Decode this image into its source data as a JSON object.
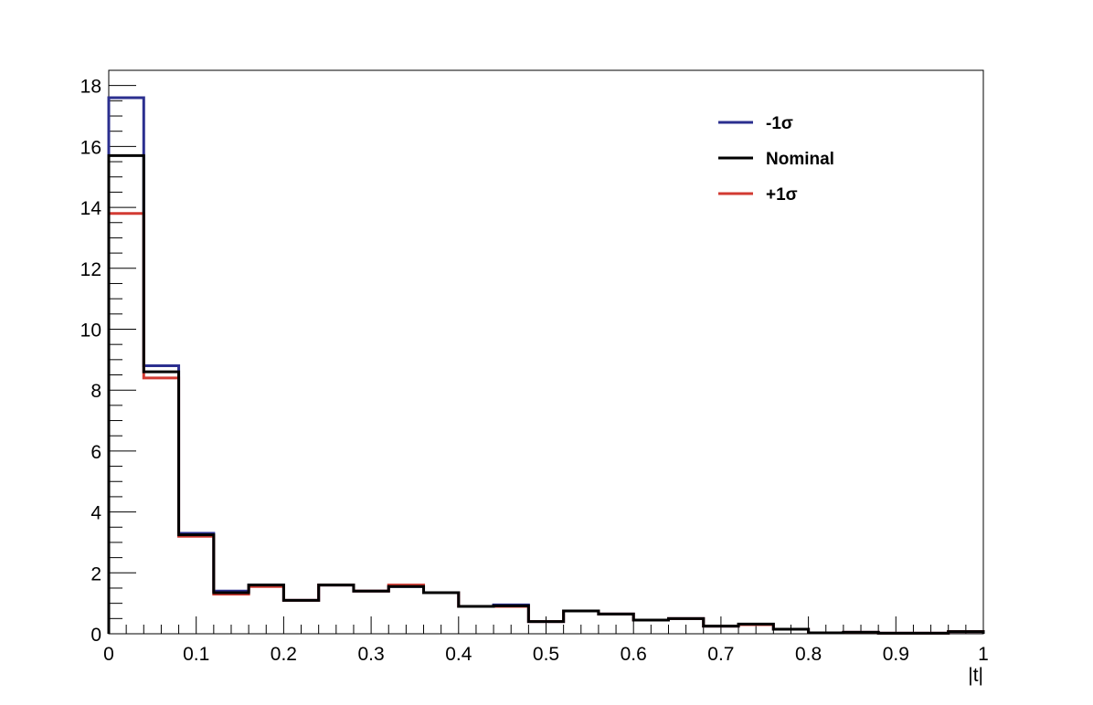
{
  "chart_data": {
    "type": "histogram-step",
    "xlabel": "|t|",
    "ylabel": "",
    "xlim": [
      0,
      1
    ],
    "ylim": [
      0,
      18.5
    ],
    "x_ticks": [
      0,
      0.1,
      0.2,
      0.3,
      0.4,
      0.5,
      0.6,
      0.7,
      0.8,
      0.9,
      1
    ],
    "x_tick_labels": [
      "0",
      "0.1",
      "0.2",
      "0.3",
      "0.4",
      "0.5",
      "0.6",
      "0.7",
      "0.8",
      "0.9",
      "1"
    ],
    "y_ticks": [
      0,
      2,
      4,
      6,
      8,
      10,
      12,
      14,
      16,
      18
    ],
    "y_tick_labels": [
      "0",
      "2",
      "4",
      "6",
      "8",
      "10",
      "12",
      "14",
      "16",
      "18"
    ],
    "bin_edges": [
      0,
      0.04,
      0.08,
      0.12,
      0.16,
      0.2,
      0.24,
      0.28,
      0.32,
      0.36,
      0.4,
      0.44,
      0.48,
      0.52,
      0.56,
      0.6,
      0.64,
      0.68,
      0.72,
      0.76,
      0.8,
      0.84,
      0.88,
      0.92,
      0.96,
      1.0
    ],
    "legend_position": "top-right",
    "series": [
      {
        "name": "-1σ",
        "color": "#2b2f8f",
        "values": [
          17.6,
          8.8,
          3.3,
          1.4,
          1.6,
          1.1,
          1.6,
          1.4,
          1.55,
          1.35,
          0.9,
          0.95,
          0.4,
          0.75,
          0.65,
          0.45,
          0.5,
          0.25,
          0.3,
          0.15,
          0.03,
          0.05,
          0.02,
          0.02,
          0.07
        ]
      },
      {
        "name": "+1σ",
        "color": "#d23a32",
        "values": [
          13.8,
          8.4,
          3.2,
          1.3,
          1.55,
          1.1,
          1.6,
          1.4,
          1.6,
          1.35,
          0.9,
          0.9,
          0.4,
          0.75,
          0.65,
          0.45,
          0.5,
          0.25,
          0.3,
          0.15,
          0.03,
          0.05,
          0.02,
          0.02,
          0.07
        ]
      },
      {
        "name": "Nominal",
        "color": "#000000",
        "values": [
          15.7,
          8.6,
          3.25,
          1.35,
          1.6,
          1.1,
          1.6,
          1.4,
          1.55,
          1.35,
          0.9,
          0.92,
          0.4,
          0.75,
          0.65,
          0.45,
          0.5,
          0.25,
          0.32,
          0.15,
          0.03,
          0.05,
          0.02,
          0.02,
          0.07
        ]
      }
    ],
    "legend_entries": [
      {
        "label": "-1σ",
        "color": "#2b2f8f"
      },
      {
        "label": "Nominal",
        "color": "#000000"
      },
      {
        "label": "+1σ",
        "color": "#d23a32"
      }
    ]
  }
}
